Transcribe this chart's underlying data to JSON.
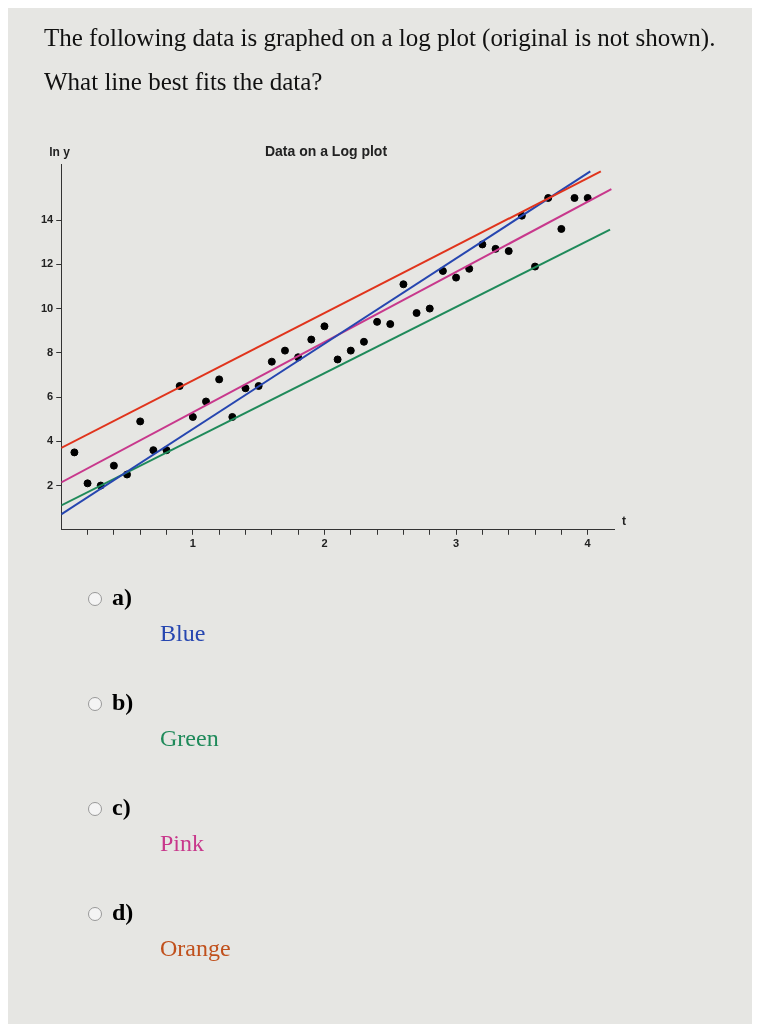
{
  "chart_data": {
    "type": "scatter",
    "title": "Data on a Log plot",
    "xlabel": "t",
    "ylabel": "ln y",
    "annotations": [
      "The following data is graphed on a log plot (original is not shown). What line best fits the data?",
      "a)",
      "Blue",
      "b)",
      "Green",
      "c)",
      "Pink",
      "d)",
      "Orange"
    ],
    "xlim": [
      0,
      4.2
    ],
    "ylim": [
      0,
      16.5
    ],
    "xticks": [
      {
        "value": 0.2,
        "label": null
      },
      {
        "value": 0.4,
        "label": null
      },
      {
        "value": 0.6,
        "label": null
      },
      {
        "value": 0.8,
        "label": null
      },
      1,
      {
        "value": 1.2,
        "label": null
      },
      {
        "value": 1.4,
        "label": null
      },
      {
        "value": 1.6,
        "label": null
      },
      {
        "value": 1.8,
        "label": null
      },
      2,
      {
        "value": 2.2,
        "label": null
      },
      {
        "value": 2.4,
        "label": null
      },
      {
        "value": 2.6,
        "label": null
      },
      {
        "value": 2.8,
        "label": null
      },
      3,
      {
        "value": 3.2,
        "label": null
      },
      {
        "value": 3.4,
        "label": null
      },
      {
        "value": 3.6,
        "label": null
      },
      {
        "value": 3.8,
        "label": null
      },
      4
    ],
    "yticks": [
      2,
      4,
      6,
      8,
      10,
      12,
      14
    ],
    "grid": false,
    "legend": false,
    "series": [
      {
        "type": "line",
        "color": "#e0341c",
        "x": [
          0,
          4.1
        ],
        "values": [
          3.7,
          16.2
        ]
      },
      {
        "type": "line",
        "color": "#2646b0",
        "x": [
          0,
          4.02
        ],
        "values": [
          0.7,
          16.2
        ]
      },
      {
        "type": "line",
        "color": "#c8388c",
        "x": [
          0,
          4.18
        ],
        "values": [
          2.14,
          15.4
        ]
      },
      {
        "type": "line",
        "color": "#1f8a5a",
        "x": [
          0,
          4.17
        ],
        "values": [
          1.1,
          13.57
        ]
      },
      {
        "color": "#000000",
        "marker": "circle",
        "x": [
          0.1,
          0.2,
          0.3,
          0.4,
          0.5,
          0.6,
          0.7,
          0.8,
          0.9,
          1.0,
          1.1,
          1.2,
          1.3,
          1.4,
          1.5,
          1.6,
          1.7,
          1.8,
          1.9,
          2.0,
          2.1,
          2.2,
          2.3,
          2.4,
          2.5,
          2.6,
          2.7,
          2.8,
          2.9,
          3.0,
          3.1,
          3.2,
          3.3,
          3.4,
          3.5,
          3.6,
          3.7,
          3.8,
          3.9,
          4.0
        ],
        "values": [
          3.5,
          2.1,
          2.0,
          2.9,
          2.5,
          4.9,
          3.6,
          3.6,
          6.5,
          5.1,
          5.8,
          6.8,
          5.1,
          6.4,
          6.5,
          7.6,
          8.1,
          7.8,
          8.6,
          9.2,
          7.7,
          8.1,
          8.5,
          9.4,
          9.3,
          11.1,
          9.8,
          10.0,
          11.7,
          11.4,
          11.8,
          12.9,
          12.7,
          12.6,
          14.2,
          11.9,
          15.0,
          13.6,
          15.0,
          15.0
        ]
      }
    ]
  }
}
